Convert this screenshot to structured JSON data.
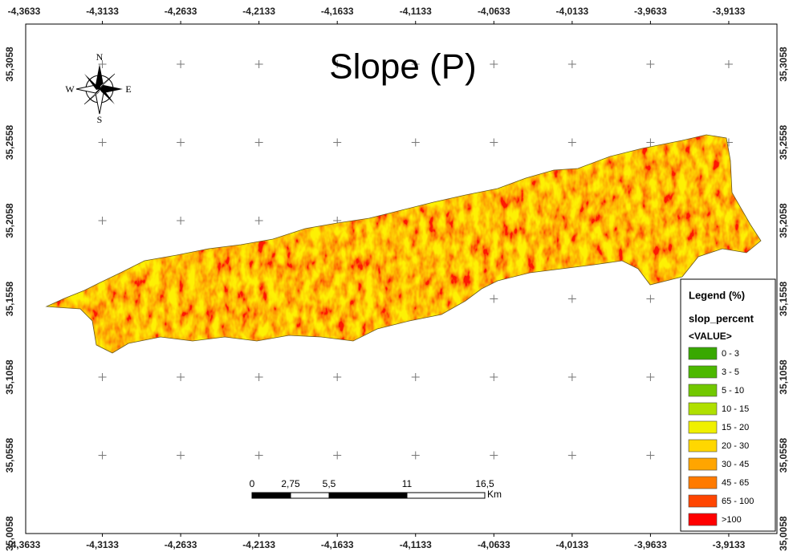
{
  "title": "Slope (P)",
  "longitude_labels": [
    "-4,3633",
    "-4,3133",
    "-4,2633",
    "-4,2133",
    "-4,1633",
    "-4,1133",
    "-4,0633",
    "-4,0133",
    "-3,9633",
    "-3,9133"
  ],
  "latitude_labels": [
    "35,3058",
    "35,2558",
    "35,2058",
    "35,1558",
    "35,1058",
    "35,0558",
    "35,0058"
  ],
  "compass": {
    "n": "N",
    "e": "E",
    "s": "S",
    "w": "W"
  },
  "scale_bar": {
    "labels": [
      "0",
      "2,75",
      "5,5",
      "11",
      "16,5"
    ],
    "unit": "Km"
  },
  "legend": {
    "title": "Legend (%)",
    "field": "slop_percent",
    "header": "<VALUE>",
    "classes": [
      {
        "label": "0 - 3",
        "color": "#38a800"
      },
      {
        "label": "3 - 5",
        "color": "#4cb800"
      },
      {
        "label": "5 - 10",
        "color": "#72c800"
      },
      {
        "label": "10 - 15",
        "color": "#b0e000"
      },
      {
        "label": "15 - 20",
        "color": "#f0f000"
      },
      {
        "label": "20 - 30",
        "color": "#ffd700"
      },
      {
        "label": "30 - 45",
        "color": "#ffa500"
      },
      {
        "label": "45 - 65",
        "color": "#ff7a00"
      },
      {
        "label": "65 - 100",
        "color": "#ff4500"
      },
      {
        "label": ">100",
        "color": "#ff0000"
      }
    ]
  }
}
